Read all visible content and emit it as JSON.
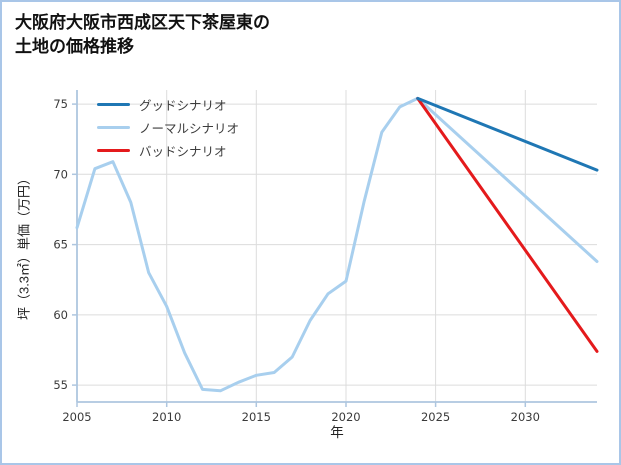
{
  "page": {
    "title": "大阪府大阪市西成区天下茶屋東の\n土地の価格推移",
    "border_color": "#a9c6e8",
    "background": "#ffffff"
  },
  "chart_data": {
    "type": "line",
    "title": "大阪府大阪市西成区天下茶屋東の 土地の価格推移",
    "xlabel": "年",
    "ylabel": "坪（3.3㎡）単価（万円）",
    "xlim": [
      2005,
      2034
    ],
    "ylim": [
      53.8,
      76
    ],
    "xticks": [
      2005,
      2010,
      2015,
      2020,
      2025,
      2030
    ],
    "yticks": [
      55,
      60,
      65,
      70,
      75
    ],
    "grid": true,
    "legend_position": "upper-left",
    "colors": {
      "grid": "#dcdcdc",
      "axis": "#aec6df",
      "tick_label": "#3a3a3a"
    },
    "series": [
      {
        "key": "good-scenario",
        "name": "グッドシナリオ",
        "color": "#1f77b4",
        "width": 3,
        "zorder": 3,
        "x": [
          2024,
          2034
        ],
        "y": [
          75.4,
          70.3
        ]
      },
      {
        "key": "normal-scenario",
        "name": "ノーマルシナリオ",
        "color": "#a8cfee",
        "width": 3,
        "zorder": 1,
        "x": [
          2005,
          2006,
          2007,
          2008,
          2009,
          2010,
          2011,
          2012,
          2013,
          2014,
          2015,
          2016,
          2017,
          2018,
          2019,
          2020,
          2021,
          2022,
          2023,
          2024,
          2034
        ],
        "y": [
          66.2,
          70.4,
          70.9,
          68.0,
          63.0,
          60.6,
          57.3,
          54.7,
          54.6,
          55.2,
          55.7,
          55.9,
          57.0,
          59.6,
          61.5,
          62.4,
          68.0,
          73.0,
          74.8,
          75.4,
          63.8
        ]
      },
      {
        "key": "bad-scenario",
        "name": "バッドシナリオ",
        "color": "#e41a1c",
        "width": 3,
        "zorder": 2,
        "x": [
          2024,
          2034
        ],
        "y": [
          75.4,
          57.4
        ]
      }
    ]
  }
}
